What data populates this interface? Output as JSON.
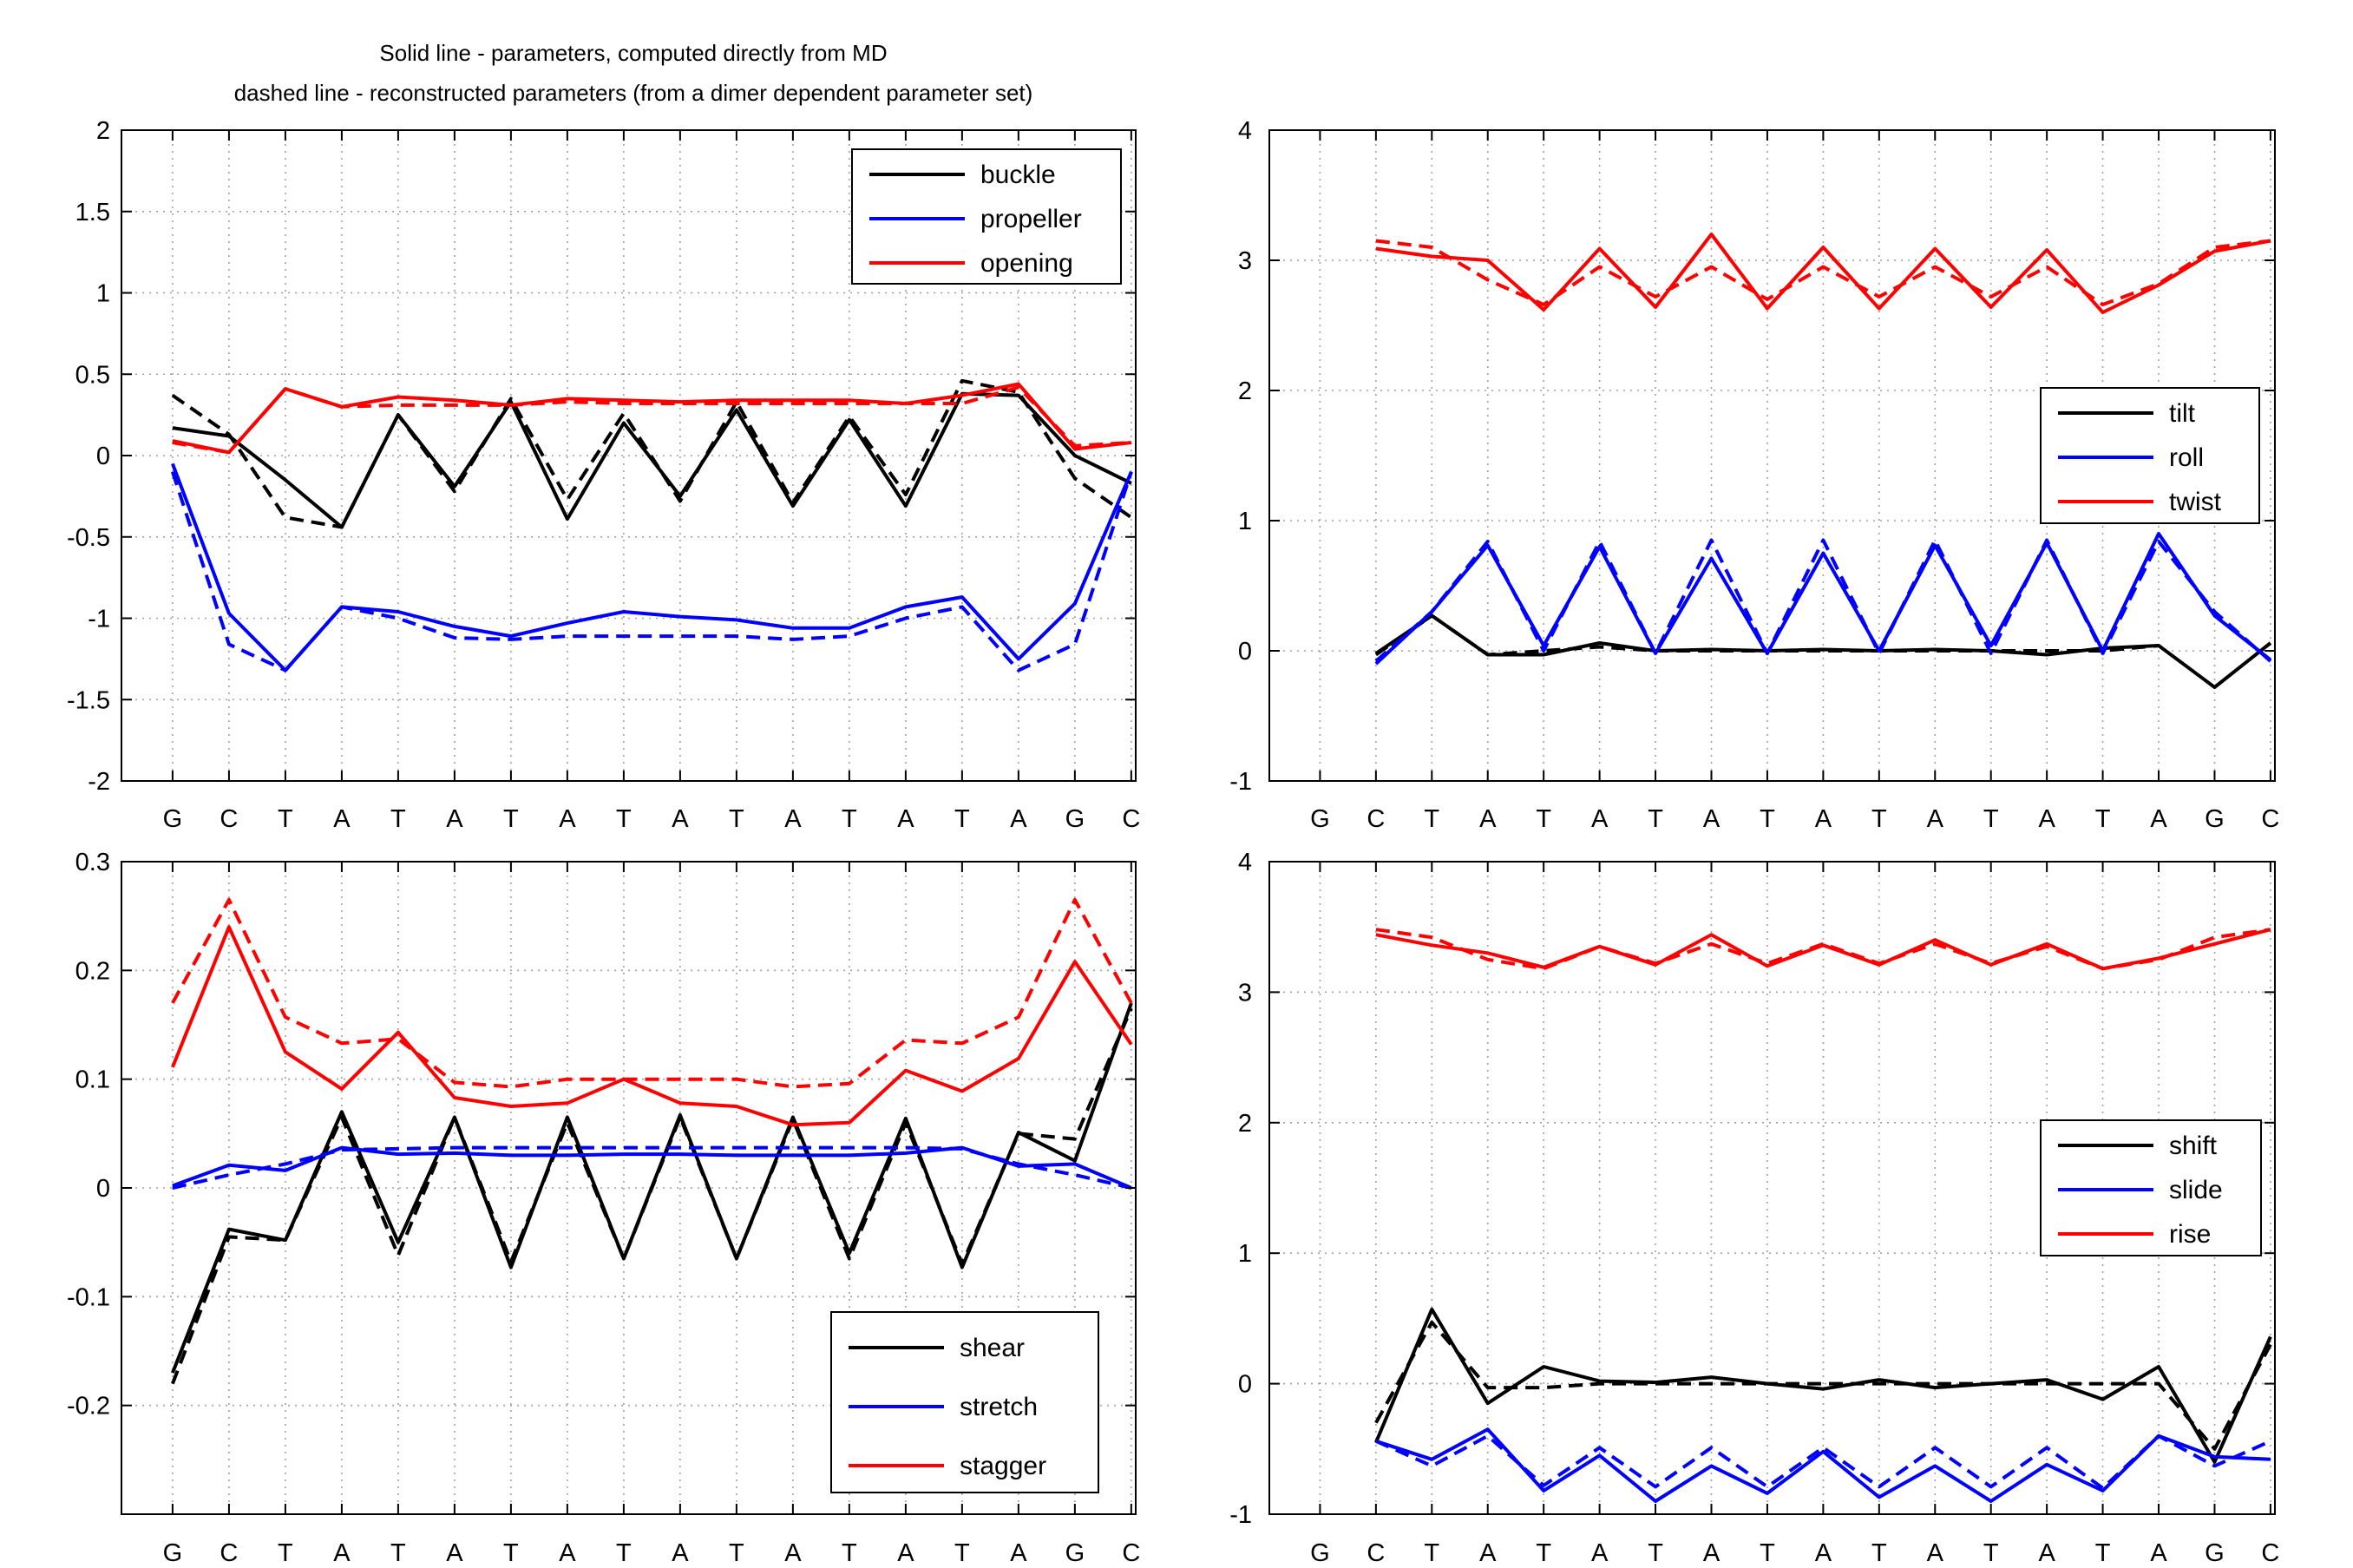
{
  "figure": {
    "title_lines": [
      "Solid line - parameters, computed directly from MD",
      "dashed line - reconstructed parameters (from a dimer dependent parameter set)"
    ]
  },
  "chart_data": [
    {
      "type": "line",
      "title": "",
      "xlabel": "",
      "ylabel": "",
      "categories": [
        "G",
        "C",
        "T",
        "A",
        "T",
        "A",
        "T",
        "A",
        "T",
        "A",
        "T",
        "A",
        "T",
        "A",
        "T",
        "A",
        "G",
        "C"
      ],
      "ylim": [
        -2,
        2
      ],
      "yticks": [
        -2,
        -1.5,
        -1,
        -0.5,
        0,
        0.5,
        1,
        1.5,
        2
      ],
      "ytick_labels": [
        "-2",
        "-1.5",
        "-1",
        "-0.5",
        "0",
        "0.5",
        "1",
        "1.5",
        "2"
      ],
      "grid": true,
      "legend_position": "top-right",
      "line_styles": {
        "solid": "computed directly from MD",
        "dashed": "reconstructed"
      },
      "series": [
        {
          "name": "buckle",
          "color": "#000000",
          "style": "solid",
          "values": [
            0.17,
            0.12,
            -0.15,
            -0.44,
            0.25,
            -0.19,
            0.33,
            -0.39,
            0.2,
            -0.25,
            0.28,
            -0.31,
            0.22,
            -0.31,
            0.38,
            0.37,
            0.0,
            -0.17
          ]
        },
        {
          "name": "buckle",
          "color": "#000000",
          "style": "dashed",
          "values": [
            0.37,
            0.13,
            -0.38,
            -0.44,
            0.25,
            -0.22,
            0.35,
            -0.27,
            0.26,
            -0.28,
            0.33,
            -0.29,
            0.24,
            -0.24,
            0.46,
            0.39,
            -0.14,
            -0.38
          ]
        },
        {
          "name": "propeller",
          "color": "#0000ff",
          "style": "solid",
          "values": [
            -0.05,
            -0.97,
            -1.32,
            -0.93,
            -0.96,
            -1.05,
            -1.11,
            -1.03,
            -0.96,
            -0.99,
            -1.01,
            -1.06,
            -1.06,
            -0.93,
            -0.87,
            -1.25,
            -0.91,
            -0.1
          ]
        },
        {
          "name": "propeller",
          "color": "#0000ff",
          "style": "dashed",
          "values": [
            -0.1,
            -1.16,
            -1.32,
            -0.93,
            -1.0,
            -1.12,
            -1.13,
            -1.11,
            -1.11,
            -1.11,
            -1.11,
            -1.13,
            -1.11,
            -1.0,
            -0.93,
            -1.32,
            -1.16,
            -0.1
          ]
        },
        {
          "name": "opening",
          "color": "#ff0000",
          "style": "solid",
          "values": [
            0.09,
            0.02,
            0.41,
            0.3,
            0.36,
            0.34,
            0.31,
            0.35,
            0.34,
            0.33,
            0.34,
            0.34,
            0.34,
            0.32,
            0.37,
            0.44,
            0.04,
            0.08
          ]
        },
        {
          "name": "opening",
          "color": "#ff0000",
          "style": "dashed",
          "values": [
            0.08,
            0.02,
            0.41,
            0.3,
            0.31,
            0.31,
            0.31,
            0.33,
            0.32,
            0.32,
            0.32,
            0.32,
            0.32,
            0.32,
            0.32,
            0.42,
            0.06,
            0.08
          ]
        }
      ]
    },
    {
      "type": "line",
      "title": "",
      "xlabel": "",
      "ylabel": "",
      "categories": [
        "G",
        "C",
        "T",
        "A",
        "T",
        "A",
        "T",
        "A",
        "T",
        "A",
        "T",
        "A",
        "T",
        "A",
        "T",
        "A",
        "G",
        "C"
      ],
      "ylim": [
        -1,
        4
      ],
      "yticks": [
        -1,
        0,
        1,
        2,
        3,
        4
      ],
      "ytick_labels": [
        "-1",
        "0",
        "1",
        "2",
        "3",
        "4"
      ],
      "grid": true,
      "legend_position": "right",
      "series": [
        {
          "name": "tilt",
          "color": "#000000",
          "style": "solid",
          "values": [
            null,
            -0.02,
            0.27,
            -0.03,
            -0.03,
            0.06,
            0.0,
            0.01,
            0.0,
            0.01,
            0.0,
            0.01,
            0.0,
            -0.03,
            0.02,
            0.04,
            -0.28,
            0.06
          ]
        },
        {
          "name": "tilt",
          "color": "#000000",
          "style": "dashed",
          "values": [
            null,
            -0.03,
            0.27,
            -0.03,
            0.0,
            0.03,
            0.0,
            0.0,
            0.0,
            0.0,
            0.0,
            0.0,
            0.0,
            0.0,
            0.0,
            0.04,
            null,
            null
          ]
        },
        {
          "name": "roll",
          "color": "#0000ff",
          "style": "solid",
          "values": [
            null,
            -0.1,
            0.3,
            0.81,
            0.04,
            0.8,
            -0.02,
            0.71,
            -0.02,
            0.75,
            0.0,
            0.81,
            0.04,
            0.83,
            0.0,
            0.9,
            0.27,
            -0.07
          ]
        },
        {
          "name": "roll",
          "color": "#0000ff",
          "style": "dashed",
          "values": [
            null,
            -0.08,
            0.3,
            0.84,
            0.0,
            0.84,
            -0.02,
            0.85,
            -0.02,
            0.85,
            -0.02,
            0.85,
            -0.02,
            0.85,
            -0.02,
            0.84,
            0.3,
            -0.08
          ]
        },
        {
          "name": "twist",
          "color": "#ff0000",
          "style": "solid",
          "values": [
            null,
            3.09,
            3.03,
            3.0,
            2.62,
            3.09,
            2.64,
            3.2,
            2.63,
            3.1,
            2.63,
            3.09,
            2.64,
            3.08,
            2.6,
            2.81,
            3.07,
            3.15
          ]
        },
        {
          "name": "twist",
          "color": "#ff0000",
          "style": "dashed",
          "values": [
            null,
            3.15,
            3.1,
            2.85,
            2.66,
            2.95,
            2.72,
            2.95,
            2.7,
            2.95,
            2.72,
            2.95,
            2.72,
            2.95,
            2.66,
            2.82,
            3.1,
            3.15
          ]
        }
      ]
    },
    {
      "type": "line",
      "title": "",
      "xlabel": "",
      "ylabel": "",
      "categories": [
        "G",
        "C",
        "T",
        "A",
        "T",
        "A",
        "T",
        "A",
        "T",
        "A",
        "T",
        "A",
        "T",
        "A",
        "T",
        "A",
        "G",
        "C"
      ],
      "ylim": [
        -0.3,
        0.3
      ],
      "yticks": [
        -0.2,
        -0.1,
        0,
        0.1,
        0.2,
        0.3
      ],
      "ytick_labels": [
        "-0.2",
        "-0.1",
        "0",
        "0.1",
        "0.2",
        "0.3"
      ],
      "grid": true,
      "legend_position": "bottom-right",
      "series": [
        {
          "name": "shear",
          "color": "#000000",
          "style": "solid",
          "values": [
            -0.17,
            -0.038,
            -0.048,
            0.07,
            -0.05,
            0.065,
            -0.073,
            0.065,
            -0.065,
            0.067,
            -0.065,
            0.065,
            -0.06,
            0.064,
            -0.073,
            0.051,
            0.025,
            0.17
          ]
        },
        {
          "name": "shear",
          "color": "#000000",
          "style": "dashed",
          "values": [
            -0.18,
            -0.045,
            -0.048,
            0.065,
            -0.062,
            0.065,
            -0.068,
            0.06,
            -0.065,
            0.065,
            -0.065,
            0.063,
            -0.065,
            0.06,
            -0.07,
            0.05,
            0.045,
            0.165
          ]
        },
        {
          "name": "stretch",
          "color": "#0000ff",
          "style": "solid",
          "values": [
            0.002,
            0.021,
            0.016,
            0.037,
            0.031,
            0.032,
            0.03,
            0.03,
            0.031,
            0.031,
            0.03,
            0.03,
            0.03,
            0.032,
            0.037,
            0.02,
            0.022,
            0.0
          ]
        },
        {
          "name": "stretch",
          "color": "#0000ff",
          "style": "dashed",
          "values": [
            0.0,
            0.012,
            0.022,
            0.035,
            0.036,
            0.037,
            0.037,
            0.037,
            0.037,
            0.037,
            0.037,
            0.037,
            0.037,
            0.037,
            0.036,
            0.022,
            0.012,
            0.0
          ]
        },
        {
          "name": "stagger",
          "color": "#ff0000",
          "style": "solid",
          "values": [
            0.111,
            0.24,
            0.125,
            0.091,
            0.143,
            0.083,
            0.075,
            0.078,
            0.1,
            0.078,
            0.075,
            0.058,
            0.06,
            0.108,
            0.089,
            0.119,
            0.208,
            0.132
          ]
        },
        {
          "name": "stagger",
          "color": "#ff0000",
          "style": "dashed",
          "values": [
            0.17,
            0.265,
            0.157,
            0.133,
            0.137,
            0.097,
            0.093,
            0.1,
            0.1,
            0.1,
            0.1,
            0.093,
            0.096,
            0.136,
            0.133,
            0.157,
            0.265,
            0.17
          ]
        }
      ]
    },
    {
      "type": "line",
      "title": "",
      "xlabel": "",
      "ylabel": "",
      "categories": [
        "G",
        "C",
        "T",
        "A",
        "T",
        "A",
        "T",
        "A",
        "T",
        "A",
        "T",
        "A",
        "T",
        "A",
        "T",
        "A",
        "G",
        "C"
      ],
      "ylim": [
        -1,
        4
      ],
      "yticks": [
        -1,
        0,
        1,
        2,
        3,
        4
      ],
      "ytick_labels": [
        "-1",
        "0",
        "1",
        "2",
        "3",
        "4"
      ],
      "grid": true,
      "legend_position": "right",
      "series": [
        {
          "name": "shift",
          "color": "#000000",
          "style": "solid",
          "values": [
            null,
            -0.45,
            0.57,
            -0.15,
            0.13,
            0.02,
            0.01,
            0.05,
            0.0,
            -0.04,
            0.03,
            -0.03,
            0.0,
            0.03,
            -0.12,
            0.13,
            -0.6,
            0.36
          ]
        },
        {
          "name": "shift",
          "color": "#000000",
          "style": "dashed",
          "values": [
            null,
            -0.3,
            0.47,
            -0.03,
            -0.03,
            0.0,
            0.0,
            0.0,
            0.0,
            0.0,
            0.0,
            0.0,
            0.0,
            0.0,
            0.0,
            0.0,
            -0.5,
            0.3
          ]
        },
        {
          "name": "slide",
          "color": "#0000ff",
          "style": "solid",
          "values": [
            null,
            -0.44,
            -0.58,
            -0.35,
            -0.82,
            -0.55,
            -0.9,
            -0.63,
            -0.84,
            -0.52,
            -0.87,
            -0.63,
            -0.9,
            -0.62,
            -0.82,
            -0.4,
            -0.56,
            -0.58
          ]
        },
        {
          "name": "slide",
          "color": "#0000ff",
          "style": "dashed",
          "values": [
            null,
            -0.44,
            -0.63,
            -0.4,
            -0.78,
            -0.49,
            -0.79,
            -0.49,
            -0.79,
            -0.49,
            -0.79,
            -0.49,
            -0.79,
            -0.49,
            -0.8,
            -0.4,
            -0.63,
            -0.44
          ]
        },
        {
          "name": "rise",
          "color": "#ff0000",
          "style": "solid",
          "values": [
            null,
            3.44,
            3.36,
            3.3,
            3.19,
            3.35,
            3.21,
            3.44,
            3.2,
            3.36,
            3.21,
            3.4,
            3.21,
            3.37,
            3.18,
            3.26,
            3.37,
            3.48
          ]
        },
        {
          "name": "rise",
          "color": "#ff0000",
          "style": "dashed",
          "values": [
            null,
            3.48,
            3.42,
            3.25,
            3.18,
            3.35,
            3.22,
            3.37,
            3.22,
            3.37,
            3.22,
            3.37,
            3.22,
            3.35,
            3.18,
            3.25,
            3.42,
            3.48
          ]
        }
      ]
    }
  ]
}
